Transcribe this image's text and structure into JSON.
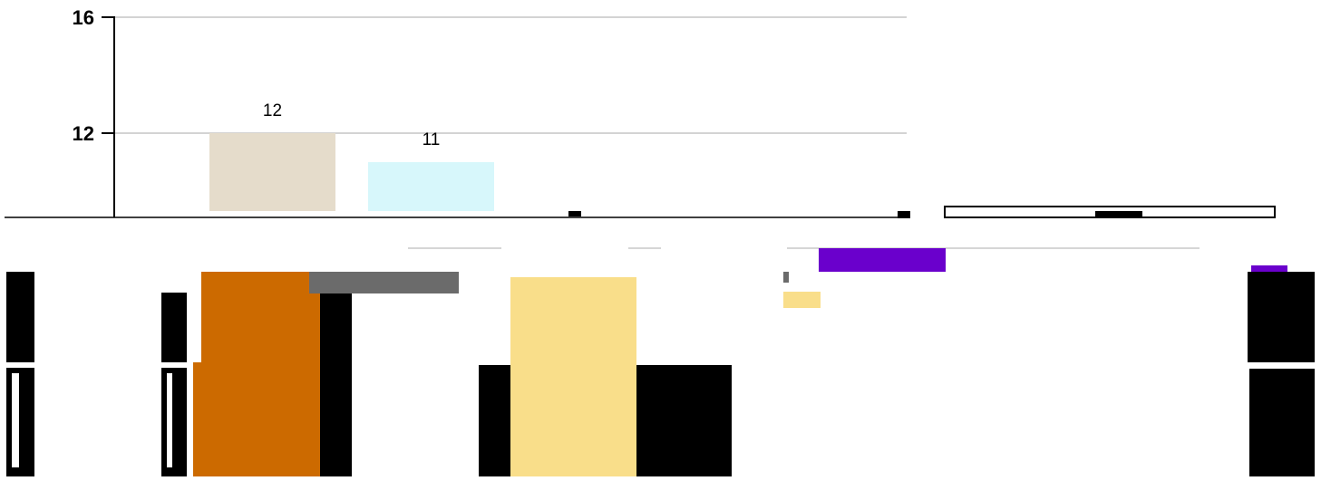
{
  "chart_data": {
    "type": "bar",
    "ylim": [
      9,
      16
    ],
    "yticks": [
      {
        "value": 16,
        "label": "16"
      },
      {
        "value": 12,
        "label": "12"
      }
    ],
    "grid": true,
    "series": [
      {
        "values": [
          12,
          11
        ],
        "labels": [
          "12",
          "11"
        ],
        "colors": [
          "#e5dccb",
          "#d7f7fb"
        ]
      }
    ],
    "fragment_colors": {
      "orange": "#cc6a00",
      "gray": "#6b6b6b",
      "yellow": "#f9de8a",
      "purple": "#6a00cc",
      "black": "#000000"
    }
  }
}
